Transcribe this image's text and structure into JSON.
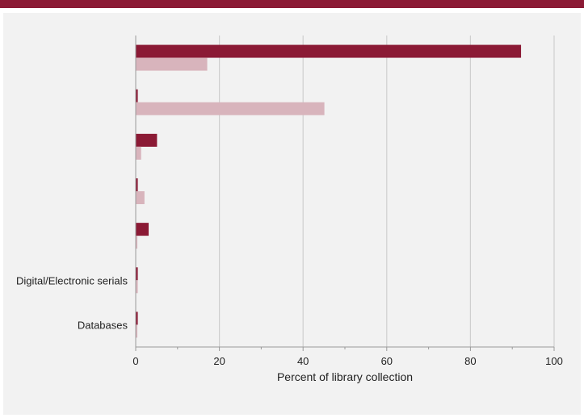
{
  "chart_data": {
    "type": "bar",
    "orientation": "horizontal",
    "categories": [
      "",
      "",
      "",
      "",
      "",
      "Digital/Electronic serials",
      "Databases"
    ],
    "series": [
      {
        "color": "#8b1a35",
        "values": [
          92,
          0.4,
          5,
          0.4,
          3,
          0.4,
          0.4
        ]
      },
      {
        "color": "#d8b4bc",
        "values": [
          17,
          45,
          1.2,
          2,
          0.3,
          0.4,
          0.3
        ]
      }
    ],
    "xlabel": "Percent of library collection",
    "xlim": [
      0,
      100
    ],
    "xticks": [
      0,
      20,
      40,
      60,
      80,
      100
    ],
    "grid": true
  }
}
